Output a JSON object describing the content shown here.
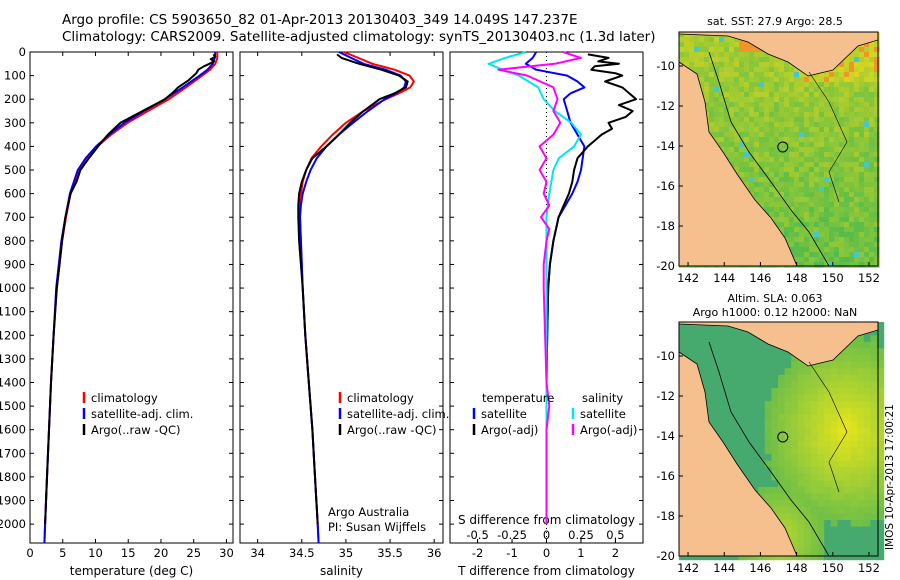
{
  "header": {
    "line1": "Argo profile: CS 5903650_82 01-Apr-2013 20130403_349 14.049S 147.237E",
    "line2": "Climatology: CARS2009. Satellite-adjusted climatology: synTS_20130403.nc (1.3d later)"
  },
  "colors": {
    "red": "#ff0000",
    "blue": "#0000ff",
    "black": "#000000",
    "cyan": "#00e5ee",
    "magenta": "#ff00ff",
    "land": "#f5c08e"
  },
  "chart_data": [
    {
      "type": "line",
      "id": "temperature",
      "xlabel": "temperature (deg C)",
      "xlim": [
        0,
        31
      ],
      "xticks": [
        0,
        5,
        10,
        15,
        20,
        25,
        30
      ],
      "ylim": [
        2080,
        0
      ],
      "yticks": [
        0,
        100,
        200,
        300,
        400,
        500,
        600,
        700,
        800,
        900,
        1000,
        1100,
        1200,
        1300,
        1400,
        1500,
        1600,
        1700,
        1800,
        1900,
        2000
      ],
      "legend": [
        "climatology",
        "satellite-adj. clim.",
        "Argo(..raw -QC)"
      ],
      "series": [
        {
          "name": "climatology",
          "color": "red",
          "depth": [
            0,
            25,
            50,
            75,
            100,
            150,
            200,
            250,
            300,
            350,
            400,
            450,
            500,
            600,
            700,
            800,
            900,
            1000,
            1200,
            1400,
            1600,
            1800,
            2000,
            2080
          ],
          "values": [
            28.6,
            28.6,
            28.3,
            27.5,
            26.3,
            23.8,
            21.2,
            18.0,
            14.9,
            12.4,
            10.3,
            8.6,
            7.4,
            6.2,
            5.5,
            4.9,
            4.5,
            4.1,
            3.6,
            3.2,
            2.9,
            2.6,
            2.3,
            2.2
          ]
        },
        {
          "name": "satellite-adj. clim.",
          "color": "blue",
          "depth": [
            0,
            25,
            50,
            75,
            100,
            150,
            200,
            250,
            300,
            350,
            400,
            450,
            500,
            600,
            700,
            800,
            900,
            1000,
            1200,
            1400,
            1600,
            1800,
            2000,
            2080
          ],
          "values": [
            28.3,
            28.2,
            27.9,
            27.1,
            25.9,
            23.3,
            20.6,
            17.4,
            14.4,
            12.1,
            10.1,
            8.5,
            7.3,
            6.1,
            5.4,
            4.8,
            4.4,
            4.0,
            3.6,
            3.2,
            2.9,
            2.6,
            2.3,
            2.2
          ]
        },
        {
          "name": "Argo(..raw -QC)",
          "color": "black",
          "depth": [
            10,
            20,
            30,
            40,
            50,
            60,
            75,
            90,
            100,
            120,
            150,
            175,
            200,
            250,
            300,
            350,
            400,
            450,
            500,
            550,
            600,
            700,
            800,
            900,
            1000,
            1200,
            1400,
            1600,
            1800,
            2000
          ],
          "values": [
            28.0,
            28.3,
            27.6,
            28.1,
            27.4,
            26.6,
            25.7,
            25.4,
            25.0,
            24.2,
            22.6,
            21.7,
            20.6,
            17.2,
            13.8,
            11.9,
            10.4,
            9.0,
            7.7,
            7.1,
            6.2,
            5.4,
            4.9,
            4.5,
            4.1,
            3.6,
            3.2,
            2.9,
            2.6,
            2.3
          ]
        }
      ]
    },
    {
      "type": "line",
      "id": "salinity",
      "xlabel": "salinity",
      "xlim": [
        33.8,
        36.1
      ],
      "xticks": [
        34,
        34.5,
        35,
        35.5,
        36
      ],
      "ylim": [
        2080,
        0
      ],
      "legend": [
        "climatology",
        "satellite-adj. clim.",
        "Argo(..raw -QC)"
      ],
      "annotation": [
        "Argo Australia",
        "PI: Susan Wijffels"
      ],
      "series": [
        {
          "name": "climatology",
          "color": "red",
          "depth": [
            0,
            50,
            75,
            100,
            125,
            150,
            175,
            200,
            250,
            300,
            350,
            400,
            450,
            500,
            550,
            600,
            650,
            700,
            800,
            900,
            1000,
            1200,
            1400,
            1600,
            1800,
            2000,
            2080
          ],
          "values": [
            34.98,
            35.3,
            35.55,
            35.72,
            35.77,
            35.73,
            35.6,
            35.45,
            35.2,
            35.0,
            34.85,
            34.72,
            34.61,
            34.55,
            34.51,
            34.49,
            34.48,
            34.48,
            34.49,
            34.5,
            34.51,
            34.54,
            34.58,
            34.62,
            34.65,
            34.68,
            34.69
          ]
        },
        {
          "name": "satellite-adj. clim.",
          "color": "blue",
          "depth": [
            0,
            50,
            75,
            100,
            125,
            150,
            175,
            200,
            250,
            300,
            350,
            400,
            450,
            500,
            550,
            600,
            650,
            700,
            800,
            900,
            1000,
            1200,
            1400,
            1600,
            1800,
            2000,
            2080
          ],
          "values": [
            34.92,
            35.2,
            35.45,
            35.62,
            35.68,
            35.66,
            35.57,
            35.44,
            35.25,
            35.08,
            34.92,
            34.78,
            34.67,
            34.6,
            34.55,
            34.51,
            34.49,
            34.48,
            34.49,
            34.5,
            34.51,
            34.54,
            34.58,
            34.62,
            34.65,
            34.68,
            34.69
          ]
        },
        {
          "name": "Argo(..raw -QC)",
          "color": "black",
          "depth": [
            10,
            25,
            50,
            75,
            100,
            125,
            150,
            175,
            200,
            250,
            300,
            350,
            400,
            450,
            500,
            550,
            600,
            650,
            700,
            800,
            900,
            1000,
            1200,
            1400,
            1600,
            1800,
            2000
          ],
          "values": [
            34.9,
            34.95,
            35.15,
            35.4,
            35.6,
            35.7,
            35.68,
            35.55,
            35.38,
            35.2,
            35.05,
            34.92,
            34.78,
            34.62,
            34.55,
            34.5,
            34.47,
            34.46,
            34.46,
            34.47,
            34.49,
            34.51,
            34.54,
            34.58,
            34.62,
            34.65,
            34.68
          ]
        }
      ]
    },
    {
      "type": "line",
      "id": "differences",
      "xlabel_s": "S difference from climatology",
      "xlabel_t": "T difference from climatology",
      "xlim": [
        -2.8,
        2.8
      ],
      "t_ticks": [
        "-2",
        "-1",
        "0",
        "1",
        "2"
      ],
      "t_tick_values": [
        -2,
        -1,
        0,
        1,
        2
      ],
      "s_ticks": [
        "-0.5",
        "-0.25",
        "0",
        "0.25",
        "0.5"
      ],
      "s_tick_values": [
        -0.5,
        -0.25,
        0,
        0.25,
        0.5
      ],
      "s_scale": 0.25,
      "ylim": [
        2080,
        0
      ],
      "legend_temperature": {
        "heading": "temperature",
        "items": [
          "satellite",
          "Argo(-adj)"
        ]
      },
      "legend_salinity": {
        "heading": "salinity",
        "items": [
          "satellite",
          "Argo(-adj)"
        ]
      },
      "series": [
        {
          "name": "temperature satellite",
          "color": "blue",
          "depth": [
            0,
            25,
            50,
            75,
            100,
            125,
            150,
            175,
            200,
            250,
            300,
            350,
            400,
            450,
            500,
            550,
            600,
            650,
            700,
            800,
            900,
            1000,
            1200,
            1400,
            1600,
            1800,
            2000
          ],
          "values": [
            -0.3,
            -0.4,
            -0.6,
            -0.3,
            0.6,
            0.9,
            1.1,
            0.7,
            0.5,
            0.6,
            0.7,
            0.9,
            1.1,
            1.05,
            1.0,
            0.9,
            0.75,
            0.55,
            0.35,
            0.2,
            0.1,
            0.05,
            0.02,
            0.0,
            0.0,
            0.0,
            0.0
          ]
        },
        {
          "name": "temperature Argo",
          "color": "black",
          "depth": [
            10,
            25,
            40,
            50,
            60,
            75,
            90,
            100,
            125,
            150,
            175,
            200,
            225,
            250,
            275,
            300,
            325,
            350,
            375,
            400,
            450,
            500,
            550,
            600,
            650,
            700,
            800,
            900,
            1000,
            1200,
            1400,
            1600,
            1800,
            2000
          ],
          "values": [
            1.2,
            1.8,
            1.5,
            2.1,
            1.4,
            1.3,
            2.0,
            2.2,
            1.7,
            2.2,
            2.4,
            2.6,
            2.1,
            2.5,
            2.3,
            1.8,
            1.9,
            1.6,
            1.4,
            1.2,
            0.9,
            0.8,
            0.75,
            0.65,
            0.5,
            0.35,
            0.2,
            0.1,
            0.05,
            0.02,
            0.0,
            0.0,
            0.0,
            0.0
          ]
        },
        {
          "name": "salinity satellite",
          "color": "cyan",
          "depth": [
            0,
            25,
            50,
            75,
            100,
            150,
            200,
            250,
            300,
            350,
            400,
            450,
            500,
            600,
            700,
            800,
            900,
            1000,
            1200,
            1400,
            1600,
            1800,
            2000
          ],
          "values": [
            -0.15,
            -0.3,
            -0.42,
            -0.32,
            -0.2,
            -0.06,
            -0.02,
            0.06,
            0.18,
            0.25,
            0.2,
            0.09,
            0.05,
            0.02,
            0.0,
            0.0,
            0.0,
            0.0,
            0.0,
            0.0,
            0.0,
            0.0,
            0.0
          ]
        },
        {
          "name": "salinity Argo",
          "color": "magenta",
          "depth": [
            0,
            25,
            50,
            75,
            100,
            150,
            200,
            250,
            300,
            350,
            400,
            450,
            500,
            550,
            600,
            650,
            700,
            750,
            800,
            900,
            1000,
            1200,
            1400,
            1500,
            1600,
            1800,
            2000
          ],
          "values": [
            0.12,
            0.25,
            0.06,
            -0.35,
            -0.14,
            0.05,
            0.08,
            0.05,
            0.1,
            0.05,
            -0.05,
            0.0,
            -0.05,
            0.0,
            -0.02,
            0.02,
            -0.04,
            0.02,
            0.0,
            -0.02,
            -0.02,
            -0.01,
            0.0,
            0.02,
            0.0,
            0.0,
            0.0
          ]
        }
      ]
    },
    {
      "type": "heatmap",
      "id": "sst-map",
      "title": "sat. SST: 27.9 Argo: 28.5",
      "xticks": [
        "142",
        "144",
        "146",
        "148",
        "150",
        "152"
      ],
      "yticks": [
        "-10",
        "-12",
        "-14",
        "-16",
        "-18",
        "-20"
      ],
      "xlim": [
        141.5,
        152.5
      ],
      "ylim": [
        -20,
        -8.3
      ],
      "argo_position": {
        "lon": 147.237,
        "lat": -14.049
      }
    },
    {
      "type": "heatmap",
      "id": "sla-map",
      "title_line1": "Altim. SLA: 0.063",
      "title_line2": "Argo h1000: 0.12 h2000: NaN",
      "xticks": [
        "142",
        "144",
        "146",
        "148",
        "150",
        "152"
      ],
      "yticks": [
        "-10",
        "-12",
        "-14",
        "-16",
        "-18",
        "-20"
      ],
      "xlim": [
        141.5,
        152.5
      ],
      "ylim": [
        -20,
        -8.3
      ],
      "argo_position": {
        "lon": 147.237,
        "lat": -14.049
      }
    }
  ],
  "timestamp": "IMOS 10-Apr-2013 17:00:21"
}
